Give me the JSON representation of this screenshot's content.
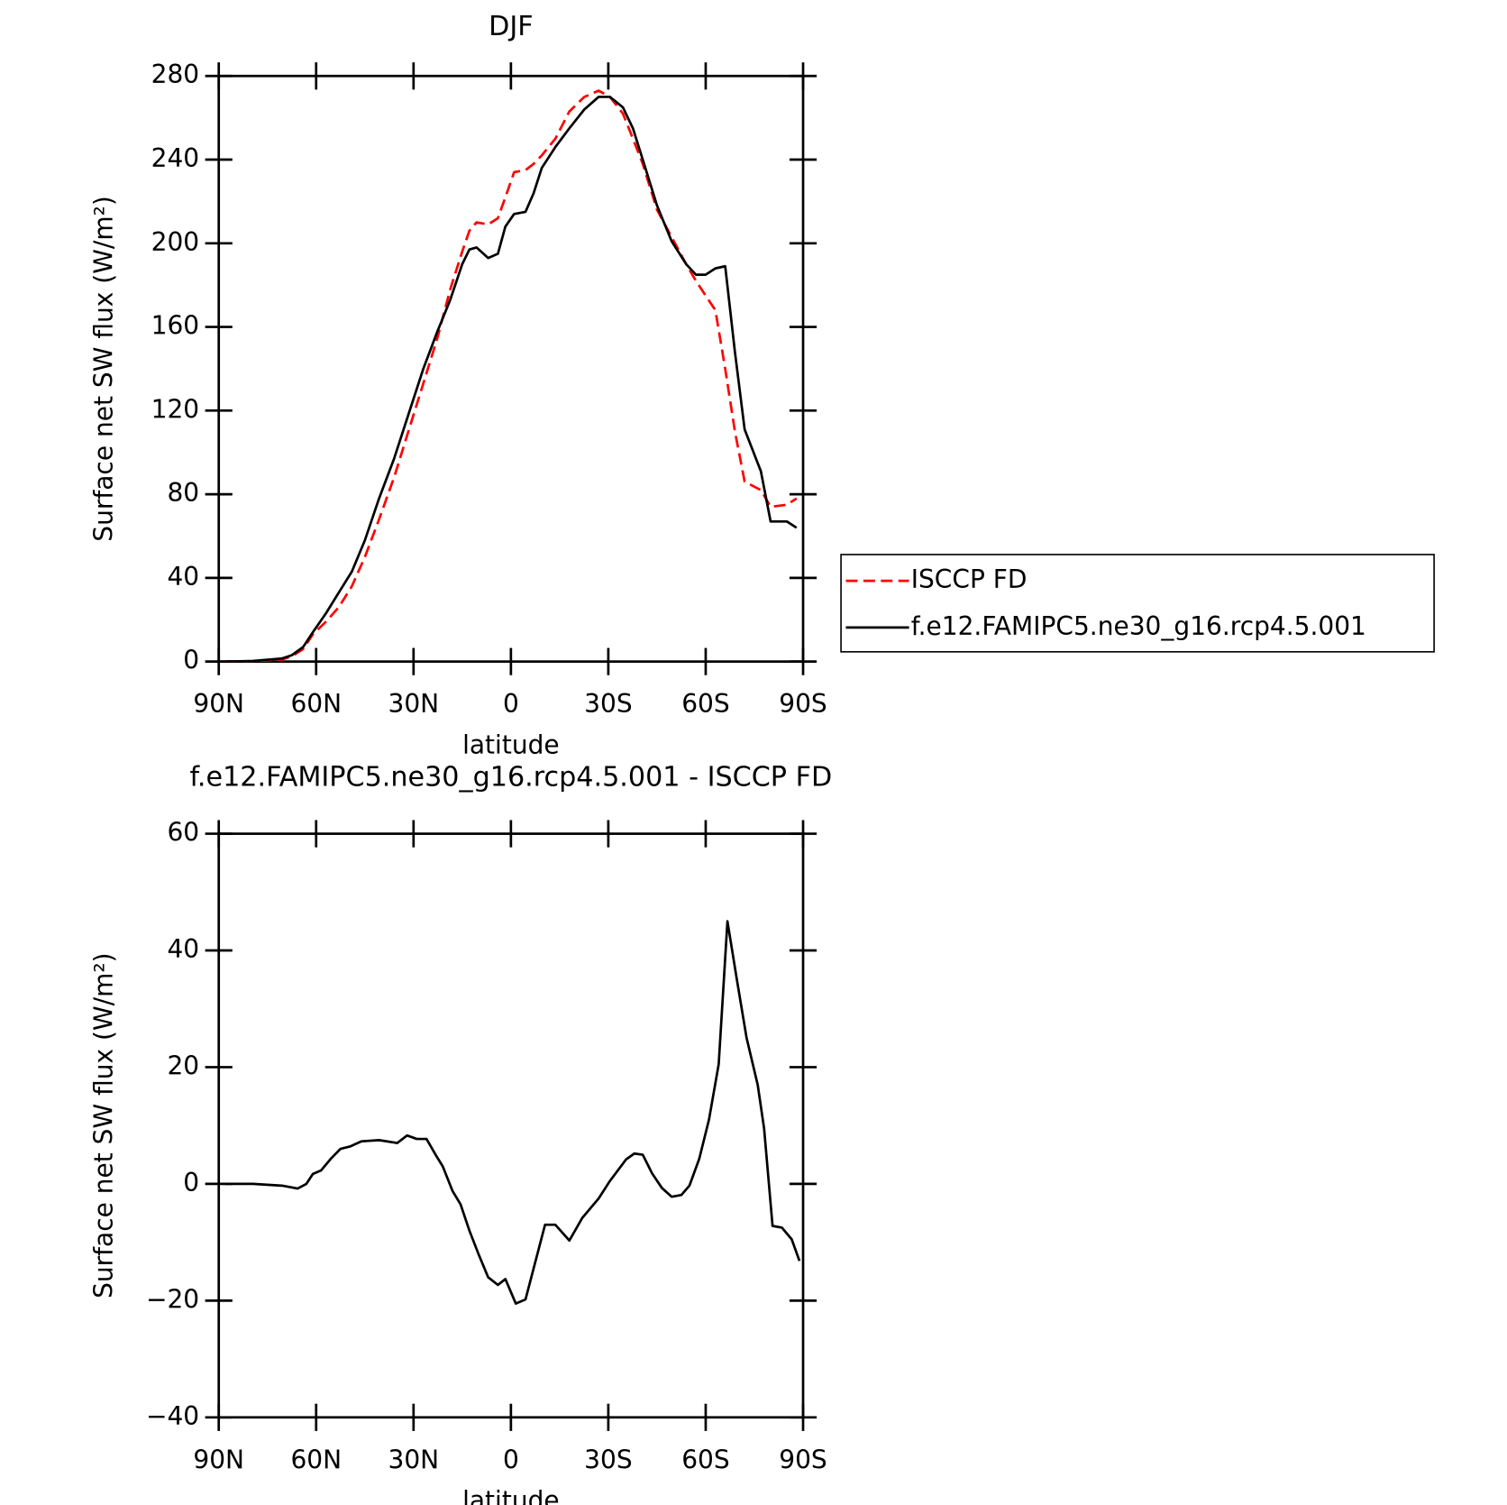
{
  "chart_data": [
    {
      "type": "line",
      "title": "DJF",
      "xlabel": "latitude",
      "ylabel": "Surface net SW flux (W/m²)",
      "xlim": [
        90,
        -90
      ],
      "xticks": [
        {
          "value": 90,
          "label": "90N"
        },
        {
          "value": 60,
          "label": "60N"
        },
        {
          "value": 30,
          "label": "30N"
        },
        0,
        {
          "value": -30,
          "label": "30S"
        },
        {
          "value": -60,
          "label": "60S"
        },
        {
          "value": -90,
          "label": "90S"
        }
      ],
      "ylim": [
        0,
        280
      ],
      "yticks": [
        0,
        40,
        80,
        120,
        160,
        200,
        240,
        280
      ],
      "legend": "right",
      "x": [
        88,
        79.5,
        70.5,
        67.5,
        64,
        61,
        57,
        53,
        49,
        45,
        40.6,
        36,
        31.6,
        27,
        22.6,
        18.7,
        15,
        12.8,
        10.6,
        7,
        4,
        1.7,
        -1,
        -4.5,
        -7,
        -9.5,
        -13.7,
        -18,
        -22.6,
        -27,
        -30.5,
        -34.5,
        -37.6,
        -40.6,
        -45,
        -49.5,
        -54,
        -57,
        -60,
        -63,
        -66,
        -69,
        -72,
        -77,
        -80,
        -85,
        -88
      ],
      "series": [
        {
          "name": "ISCCP FD",
          "color": "#ff0000",
          "linestyle": "dashed",
          "values": [
            0,
            0.2,
            1,
            2.5,
            6,
            13,
            19,
            26,
            36,
            50,
            68,
            88,
            110,
            133,
            155,
            178,
            196,
            206,
            210,
            209,
            212,
            222,
            234,
            235,
            238,
            242,
            250,
            263,
            270,
            273,
            270,
            262,
            250,
            238,
            216,
            203,
            190,
            182,
            175,
            168,
            140,
            110,
            86,
            82,
            74,
            75,
            78
          ]
        },
        {
          "name": "f.e12.FAMIPC5.ne30_g16.rcp4.5.001",
          "color": "#000000",
          "linestyle": "solid",
          "values": [
            0,
            0.3,
            1.5,
            3,
            7,
            14,
            23,
            33,
            43,
            58,
            78,
            97,
            118,
            140,
            158,
            173,
            190,
            197,
            198,
            193,
            195,
            208,
            214,
            215,
            224,
            236,
            246,
            255,
            264,
            270,
            270,
            265,
            255,
            240,
            218,
            201,
            190,
            185,
            185,
            188,
            189,
            148,
            111,
            91,
            67,
            67,
            64
          ]
        }
      ]
    },
    {
      "type": "line",
      "title": "f.e12.FAMIPC5.ne30_g16.rcp4.5.001 - ISCCP FD",
      "xlabel": "latitude",
      "ylabel": "Surface net SW flux (W/m²)",
      "xlim": [
        90,
        -90
      ],
      "xticks": [
        {
          "value": 90,
          "label": "90N"
        },
        {
          "value": 60,
          "label": "60N"
        },
        {
          "value": 30,
          "label": "30N"
        },
        0,
        {
          "value": -30,
          "label": "30S"
        },
        {
          "value": -60,
          "label": "60S"
        },
        {
          "value": -90,
          "label": "90S"
        }
      ],
      "ylim": [
        -40,
        60
      ],
      "yticks": [
        {
          "value": -40,
          "label": "−40"
        },
        {
          "value": -20,
          "label": "−20"
        },
        0,
        20,
        40,
        60
      ],
      "x": [
        88,
        79.5,
        70.5,
        67.5,
        65.7,
        63,
        61,
        58.5,
        55.5,
        52.5,
        49.6,
        46,
        40.6,
        35,
        32,
        29,
        26,
        23,
        21,
        18,
        15.5,
        12.8,
        10,
        7,
        4,
        1.7,
        -1.5,
        -4.5,
        -10.5,
        -13.7,
        -18,
        -22,
        -27,
        -30.5,
        -35.5,
        -38,
        -40.6,
        -43.5,
        -46.5,
        -49.5,
        -52.5,
        -55,
        -58,
        -61,
        -64,
        -66.7,
        -69.6,
        -72.6,
        -76,
        -78,
        -80.6,
        -83.5,
        -86.5,
        -88.9
      ],
      "series": [
        {
          "color": "#000000",
          "linestyle": "solid",
          "values": [
            0,
            0,
            -0.3,
            -0.6,
            -0.8,
            0,
            1.7,
            2.3,
            4.3,
            6,
            6.4,
            7.3,
            7.5,
            7,
            8.3,
            7.7,
            7.7,
            4.8,
            3,
            -1.2,
            -3.5,
            -8,
            -12,
            -16,
            -17.3,
            -16.3,
            -20.5,
            -19.8,
            -7,
            -7,
            -9.7,
            -5.8,
            -2.5,
            0.5,
            4.2,
            5.2,
            5,
            1.8,
            -0.7,
            -2.2,
            -1.9,
            -0.3,
            4.3,
            11,
            20.5,
            45,
            35,
            25,
            17,
            9.5,
            -7.2,
            -7.5,
            -9.5,
            -13.2
          ]
        }
      ]
    }
  ]
}
